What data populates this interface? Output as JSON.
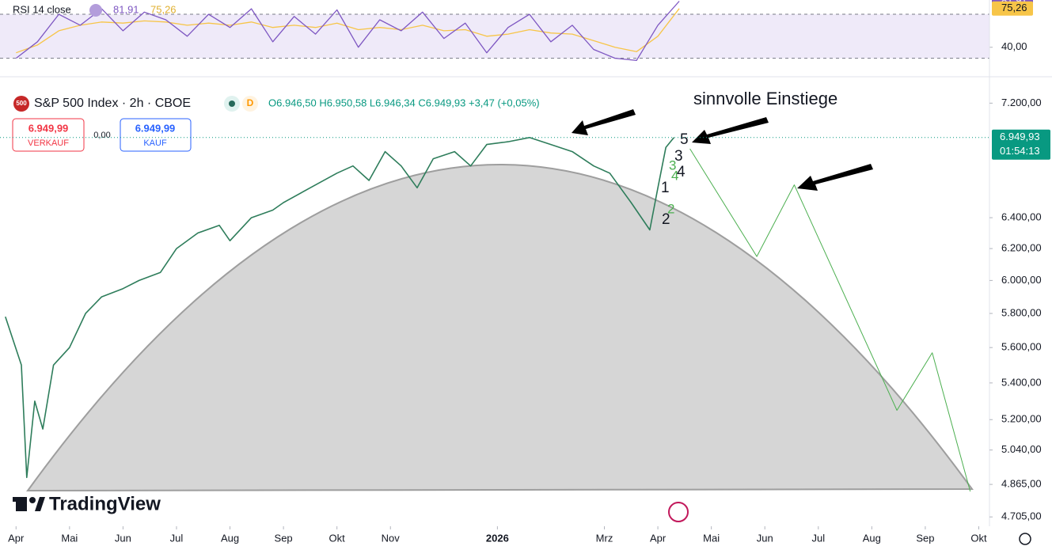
{
  "header": {
    "indicator_title": "RSI 14 close",
    "symbol": "S&P 500 Index · 2h · CBOE",
    "symbol_badge": "500",
    "ohlc": "O6.946,50 H6.950,58 L6.946,34 C6.949,93 +3,47 (+0,05%)",
    "sell_price": "6.949,99",
    "sell_label": "VERKAUF",
    "spread": "0,00",
    "buy_price": "6.949,99",
    "buy_label": "KAUF",
    "annotation": "sinnvolle Einstiege",
    "waves_black": [
      "5",
      "3",
      "4",
      "1",
      "2"
    ],
    "waves_green": [
      "3",
      "4",
      "2"
    ],
    "brand": "TradingView"
  },
  "chart_data": [
    {
      "type": "line",
      "log_scale": true,
      "xlim": [
        -0.3,
        18.2
      ],
      "ylim": [
        4660,
        7380
      ],
      "xticks": [
        {
          "value": 0,
          "label": "Apr"
        },
        {
          "value": 1,
          "label": "Mai"
        },
        {
          "value": 2,
          "label": "Jun"
        },
        {
          "value": 3,
          "label": "Jul"
        },
        {
          "value": 4,
          "label": "Aug"
        },
        {
          "value": 5,
          "label": "Sep"
        },
        {
          "value": 6,
          "label": "Okt"
        },
        {
          "value": 7,
          "label": "Nov"
        },
        {
          "value": 9,
          "label": "2026"
        },
        {
          "value": 11,
          "label": "Mrz"
        },
        {
          "value": 12,
          "label": "Apr"
        },
        {
          "value": 13,
          "label": "Mai"
        },
        {
          "value": 14,
          "label": "Jun"
        },
        {
          "value": 15,
          "label": "Jul"
        },
        {
          "value": 16,
          "label": "Aug"
        },
        {
          "value": 17,
          "label": "Sep"
        },
        {
          "value": 18,
          "label": "Okt"
        }
      ],
      "yticks": [
        {
          "value": 7200,
          "label": "7.200,00"
        },
        {
          "value": 6400,
          "label": "6.400,00"
        },
        {
          "value": 6200,
          "label": "6.200,00"
        },
        {
          "value": 6000,
          "label": "6.000,00"
        },
        {
          "value": 5800,
          "label": "5.800,00"
        },
        {
          "value": 5600,
          "label": "5.600,00"
        },
        {
          "value": 5400,
          "label": "5.400,00"
        },
        {
          "value": 5200,
          "label": "5.200,00"
        },
        {
          "value": 5040,
          "label": "5.040,00"
        },
        {
          "value": 4865,
          "label": "4.865,00"
        },
        {
          "value": 4705,
          "label": "4.705,00"
        }
      ],
      "current": {
        "value": 6949.93,
        "label": "6.949,93",
        "countdown": "01:54:13"
      },
      "series": [
        {
          "color": "#2e7d5b",
          "x": [
            -0.2,
            0.1,
            0.2,
            0.35,
            0.5,
            0.7,
            1.0,
            1.3,
            1.6,
            2.0,
            2.3,
            2.7,
            3.0,
            3.4,
            3.8,
            4.0,
            4.4,
            4.8,
            5.0,
            5.5,
            6.0,
            6.3,
            6.6,
            6.9,
            7.2,
            7.5,
            7.8,
            8.2,
            8.5,
            8.8,
            9.2,
            9.6,
            10.0,
            10.4,
            10.8,
            11.1,
            11.5,
            11.85,
            12.0,
            12.15,
            12.3
          ],
          "values": [
            5780,
            5500,
            4900,
            5300,
            5150,
            5500,
            5600,
            5800,
            5900,
            5950,
            6000,
            6050,
            6200,
            6300,
            6350,
            6250,
            6400,
            6450,
            6500,
            6600,
            6700,
            6750,
            6650,
            6850,
            6750,
            6600,
            6800,
            6850,
            6750,
            6900,
            6920,
            6950,
            6900,
            6850,
            6750,
            6700,
            6500,
            6320,
            6600,
            6880,
            6949.93
          ]
        },
        {
          "color": "#4caf50",
          "x": [
            12.6,
            13.85,
            14.55,
            16.47,
            17.13,
            17.84
          ],
          "values": [
            6870,
            6150,
            6620,
            5250,
            5570,
            4830
          ]
        }
      ]
    },
    {
      "type": "line",
      "xlim": [
        -0.3,
        18.2
      ],
      "ylim": [
        11,
        83
      ],
      "band": [
        30,
        70
      ],
      "yticks": [
        {
          "value": 40,
          "label": "40,00"
        }
      ],
      "series": [
        {
          "color": "#7e57c2",
          "current": {
            "value": 81.91,
            "label": "81,91"
          },
          "x": [
            0,
            0.4,
            0.8,
            1.2,
            1.6,
            2.0,
            2.4,
            2.8,
            3.2,
            3.6,
            4.0,
            4.4,
            4.8,
            5.2,
            5.6,
            6.0,
            6.4,
            6.8,
            7.2,
            7.6,
            8.0,
            8.4,
            8.8,
            9.2,
            9.6,
            10.0,
            10.4,
            10.8,
            11.2,
            11.6,
            12.0,
            12.4
          ],
          "values": [
            30,
            45,
            70,
            60,
            75,
            55,
            72,
            65,
            50,
            70,
            58,
            75,
            45,
            68,
            52,
            74,
            40,
            65,
            55,
            72,
            48,
            62,
            35,
            58,
            70,
            45,
            60,
            38,
            30,
            28,
            60,
            81.91
          ]
        },
        {
          "color": "#f7c548",
          "current": {
            "value": 75.26,
            "label": "75,26"
          },
          "x": [
            0,
            0.4,
            0.8,
            1.2,
            1.6,
            2.0,
            2.4,
            2.8,
            3.2,
            3.6,
            4.0,
            4.4,
            4.8,
            5.2,
            5.6,
            6.0,
            6.4,
            6.8,
            7.2,
            7.6,
            8.0,
            8.4,
            8.8,
            9.2,
            9.6,
            10.0,
            10.4,
            10.8,
            11.2,
            11.6,
            12.0,
            12.4
          ],
          "values": [
            35,
            42,
            55,
            60,
            63,
            62,
            64,
            63,
            60,
            62,
            60,
            63,
            58,
            60,
            58,
            62,
            56,
            58,
            56,
            60,
            55,
            56,
            50,
            52,
            56,
            53,
            52,
            46,
            40,
            36,
            50,
            75.26
          ]
        }
      ]
    }
  ]
}
